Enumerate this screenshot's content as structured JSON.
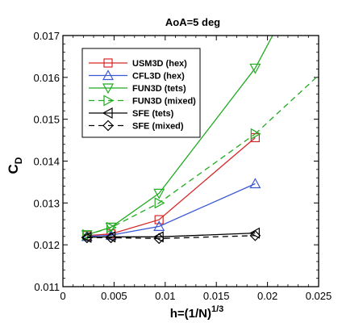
{
  "chart_data": {
    "type": "line",
    "title": "AoA=5 deg",
    "xlabel": {
      "main": "h=(1/N)",
      "sup": "1/3"
    },
    "ylabel": {
      "main": "C",
      "sub": "D"
    },
    "xlim": [
      0,
      0.025
    ],
    "ylim": [
      0.011,
      0.017
    ],
    "x_ticks": [
      0,
      0.005,
      0.01,
      0.015,
      0.02,
      0.025
    ],
    "x_tick_labels": [
      "0",
      "0.005",
      "0.01",
      "0.015",
      "0.02",
      "0.025"
    ],
    "y_ticks": [
      0.011,
      0.012,
      0.013,
      0.014,
      0.015,
      0.016,
      0.017
    ],
    "y_tick_labels": [
      "0.011",
      "0.012",
      "0.013",
      "0.014",
      "0.015",
      "0.016",
      "0.017"
    ],
    "grid": false,
    "legend_position": "top-left",
    "series": [
      {
        "name": "USM3D (hex)",
        "color": "#d62728",
        "dash": "solid",
        "marker": "square",
        "x": [
          0.00235,
          0.0047,
          0.0094,
          0.0188
        ],
        "y": [
          0.01222,
          0.01226,
          0.0126,
          0.01456
        ]
      },
      {
        "name": "CFL3D (hex)",
        "color": "#3a58d6",
        "dash": "solid",
        "marker": "triangle-up",
        "x": [
          0.00235,
          0.0047,
          0.0094,
          0.0188
        ],
        "y": [
          0.0122,
          0.01223,
          0.01244,
          0.01346
        ]
      },
      {
        "name": "FUN3D (tets)",
        "color": "#22aa22",
        "dash": "solid",
        "marker": "triangle-down",
        "x": [
          0.00235,
          0.0047,
          0.0094,
          0.0188
        ],
        "y": [
          0.01224,
          0.01242,
          0.01323,
          0.01622
        ],
        "extend": {
          "x": [
            0.0188,
            0.0205
          ],
          "y": [
            0.01622,
            0.017
          ]
        }
      },
      {
        "name": "FUN3D (mixed)",
        "color": "#22aa22",
        "dash": "dashed",
        "marker": "triangle-right",
        "x": [
          0.00235,
          0.0047,
          0.0094,
          0.0188
        ],
        "y": [
          0.01224,
          0.01241,
          0.013,
          0.01465
        ],
        "extend": {
          "x": [
            0.0188,
            0.025
          ],
          "y": [
            0.01465,
            0.01605
          ]
        }
      },
      {
        "name": "SFE (tets)",
        "color": "#000000",
        "dash": "solid",
        "marker": "triangle-left",
        "x": [
          0.00235,
          0.0047,
          0.0094,
          0.0188
        ],
        "y": [
          0.01218,
          0.01219,
          0.01219,
          0.01228
        ]
      },
      {
        "name": "SFE (mixed)",
        "color": "#000000",
        "dash": "dashed",
        "marker": "diamond",
        "x": [
          0.00235,
          0.0047,
          0.0094,
          0.0188
        ],
        "y": [
          0.01217,
          0.01217,
          0.01215,
          0.01222
        ]
      }
    ]
  }
}
